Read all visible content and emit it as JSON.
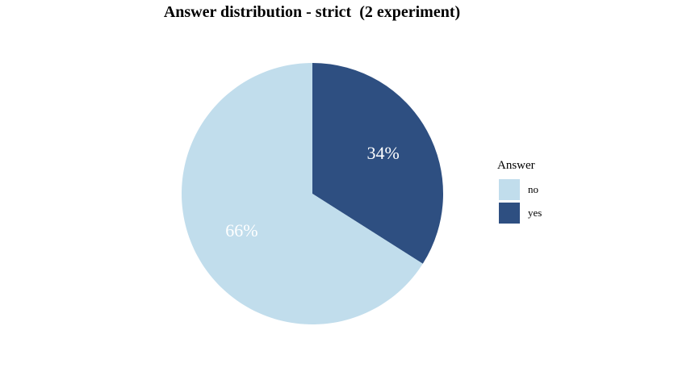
{
  "chart_data": {
    "type": "pie",
    "title": "Answer distribution - strict  (2 experiment)",
    "legend_title": "Answer",
    "legend_position": "right",
    "slices": [
      {
        "label": "yes",
        "value": 34,
        "text": "34%",
        "color": "#2E4F81"
      },
      {
        "label": "no",
        "value": 66,
        "text": "66%",
        "color": "#C1DDEC"
      }
    ],
    "legend": [
      {
        "label": "no",
        "color": "#C1DDEC"
      },
      {
        "label": "yes",
        "color": "#2E4F81"
      }
    ]
  }
}
